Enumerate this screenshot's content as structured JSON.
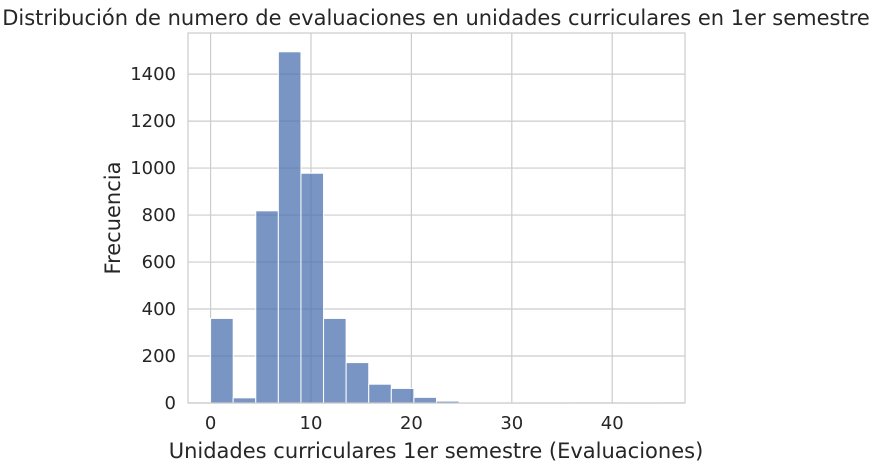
{
  "chart_data": {
    "type": "bar",
    "title": "Distribución de numero de evaluaciones en unidades curriculares en 1er semestre",
    "xlabel": "Unidades curriculares 1er semestre (Evaluaciones)",
    "ylabel": "Frecuencia",
    "xlim": [
      -2.25,
      47.25
    ],
    "ylim": [
      0,
      1575
    ],
    "xticks": [
      0,
      10,
      20,
      30,
      40
    ],
    "yticks": [
      0,
      200,
      400,
      600,
      800,
      1000,
      1200,
      1400
    ],
    "grid": true,
    "bin_width": 2.25,
    "bins": [
      {
        "x0": 0.0,
        "x1": 2.25,
        "value": 360
      },
      {
        "x0": 2.25,
        "x1": 4.5,
        "value": 22
      },
      {
        "x0": 4.5,
        "x1": 6.75,
        "value": 818
      },
      {
        "x0": 6.75,
        "x1": 9.0,
        "value": 1495
      },
      {
        "x0": 9.0,
        "x1": 11.25,
        "value": 978
      },
      {
        "x0": 11.25,
        "x1": 13.5,
        "value": 360
      },
      {
        "x0": 13.5,
        "x1": 15.75,
        "value": 172
      },
      {
        "x0": 15.75,
        "x1": 18.0,
        "value": 80
      },
      {
        "x0": 18.0,
        "x1": 20.25,
        "value": 62
      },
      {
        "x0": 20.25,
        "x1": 22.5,
        "value": 24
      },
      {
        "x0": 22.5,
        "x1": 24.75,
        "value": 8
      },
      {
        "x0": 24.75,
        "x1": 27.0,
        "value": 3
      },
      {
        "x0": 27.0,
        "x1": 29.25,
        "value": 2
      },
      {
        "x0": 29.25,
        "x1": 31.5,
        "value": 1
      },
      {
        "x0": 31.5,
        "x1": 33.75,
        "value": 1
      },
      {
        "x0": 33.75,
        "x1": 36.0,
        "value": 1
      },
      {
        "x0": 36.0,
        "x1": 38.25,
        "value": 0
      },
      {
        "x0": 38.25,
        "x1": 40.5,
        "value": 0
      },
      {
        "x0": 40.5,
        "x1": 42.75,
        "value": 1
      },
      {
        "x0": 42.75,
        "x1": 45.0,
        "value": 1
      }
    ],
    "colors": {
      "bar": "#4c72b0",
      "grid": "#cccccc",
      "text": "#262626"
    }
  }
}
